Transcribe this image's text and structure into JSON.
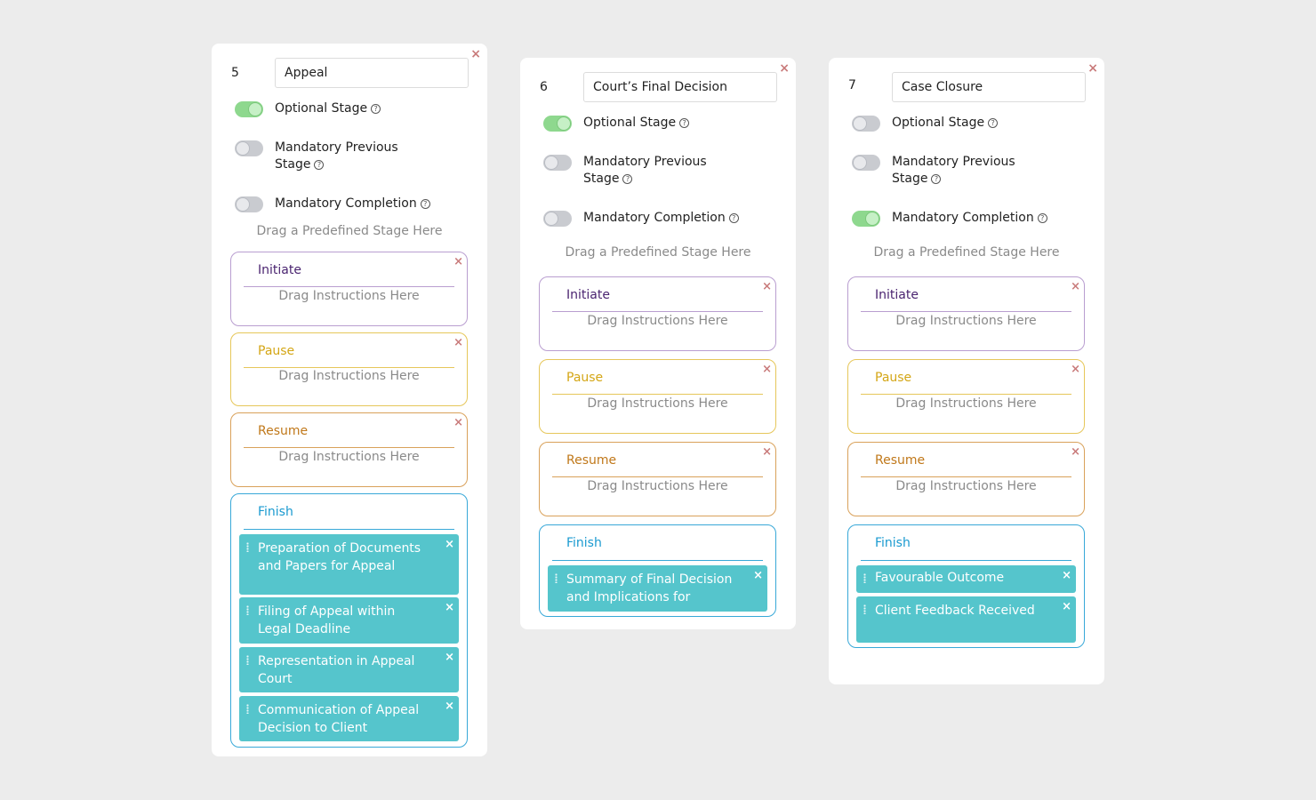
{
  "colors": {
    "background": "#ececec",
    "toggle_on": "#8ed88e",
    "toggle_off": "#c9cbd0",
    "initiate": "#b99ed0",
    "pause": "#e6c75a",
    "resume": "#d9a15a",
    "finish": "#38a8d8",
    "instruction_bg": "#55c5cc",
    "close": "#c97b7b"
  },
  "labels": {
    "optional_stage": "Optional Stage",
    "mandatory_previous_line1": "Mandatory Previous",
    "mandatory_previous_line2": "Stage",
    "mandatory_completion": "Mandatory Completion",
    "drag_stage": "Drag a Predefined Stage Here",
    "drag_instructions": "Drag Instructions Here",
    "initiate": "Initiate",
    "pause": "Pause",
    "resume": "Resume",
    "finish": "Finish",
    "close_glyph": "×",
    "help_glyph": "?"
  },
  "icons": {
    "close": "close-icon",
    "help": "question-circle-icon",
    "grip": "drag-handle-icon"
  },
  "stages": [
    {
      "number": "5",
      "name": "Appeal",
      "optional_stage": true,
      "mandatory_previous_stage": false,
      "mandatory_completion": false,
      "finish_instructions": [
        "Preparation of Documents and Papers for Appeal",
        "Filing of Appeal within Legal Deadline",
        "Representation in Appeal Court",
        "Communication of Appeal Decision to Client"
      ]
    },
    {
      "number": "6",
      "name": "Court’s Final Decision",
      "optional_stage": true,
      "mandatory_previous_stage": false,
      "mandatory_completion": false,
      "finish_instructions": [
        "Summary of Final Decision and Implications for"
      ]
    },
    {
      "number": "7",
      "name": "Case Closure",
      "optional_stage": false,
      "mandatory_previous_stage": false,
      "mandatory_completion": true,
      "finish_instructions": [
        "Favourable Outcome",
        "Client Feedback Received"
      ]
    }
  ]
}
